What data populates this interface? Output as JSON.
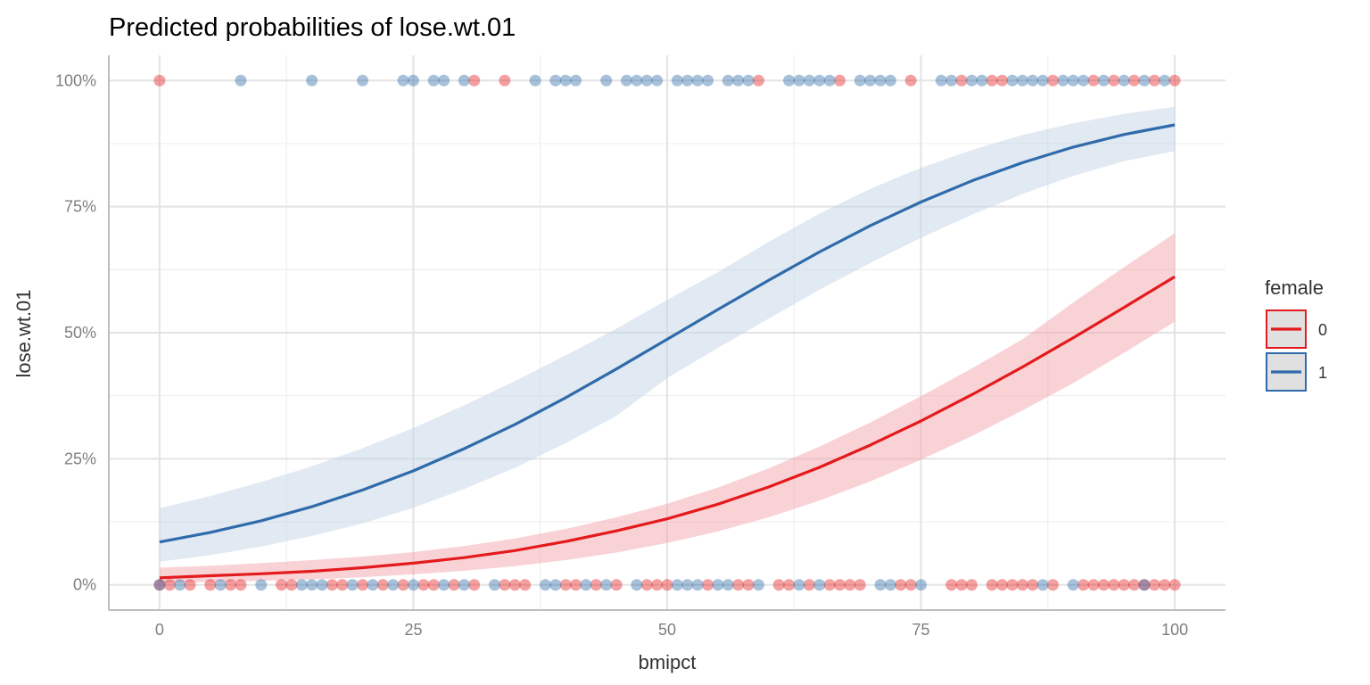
{
  "chart_data": {
    "type": "line",
    "title": "Predicted probabilities of lose.wt.01",
    "xlabel": "bmipct",
    "ylabel": "lose.wt.01",
    "xlim": [
      -5,
      105
    ],
    "ylim": [
      -0.05,
      1.05
    ],
    "x_ticks": [
      0,
      25,
      50,
      75,
      100
    ],
    "x_tick_labels": [
      "0",
      "25",
      "50",
      "75",
      "100"
    ],
    "y_ticks": [
      0,
      0.25,
      0.5,
      0.75,
      1
    ],
    "y_tick_labels": [
      "0%",
      "25%",
      "50%",
      "75%",
      "100%"
    ],
    "grid": true,
    "legend": {
      "title": "female",
      "position": "right"
    },
    "x": [
      0,
      5,
      10,
      15,
      20,
      25,
      30,
      35,
      40,
      45,
      50,
      55,
      60,
      65,
      70,
      75,
      80,
      85,
      90,
      95,
      100
    ],
    "series": [
      {
        "name": "0",
        "color": "#E41A1C",
        "fill": "#F4A5AE",
        "values": [
          0.014,
          0.018,
          0.022,
          0.027,
          0.034,
          0.043,
          0.054,
          0.068,
          0.086,
          0.107,
          0.131,
          0.16,
          0.194,
          0.233,
          0.277,
          0.325,
          0.377,
          0.432,
          0.49,
          0.55,
          0.611
        ],
        "lower": [
          0.004,
          0.006,
          0.008,
          0.011,
          0.015,
          0.021,
          0.028,
          0.037,
          0.049,
          0.064,
          0.083,
          0.106,
          0.134,
          0.167,
          0.205,
          0.248,
          0.295,
          0.346,
          0.4,
          0.46,
          0.522
        ],
        "upper": [
          0.034,
          0.038,
          0.043,
          0.049,
          0.056,
          0.065,
          0.077,
          0.092,
          0.111,
          0.134,
          0.161,
          0.193,
          0.231,
          0.274,
          0.322,
          0.374,
          0.429,
          0.487,
          0.56,
          0.63,
          0.697
        ]
      },
      {
        "name": "1",
        "color": "#2F6BAA",
        "fill": "#C3D3E7",
        "values": [
          0.085,
          0.104,
          0.127,
          0.155,
          0.188,
          0.226,
          0.27,
          0.318,
          0.371,
          0.428,
          0.487,
          0.546,
          0.604,
          0.66,
          0.712,
          0.759,
          0.801,
          0.837,
          0.868,
          0.893,
          0.912
        ],
        "lower": [
          0.046,
          0.059,
          0.076,
          0.097,
          0.122,
          0.153,
          0.19,
          0.232,
          0.281,
          0.335,
          0.41,
          0.47,
          0.528,
          0.585,
          0.638,
          0.688,
          0.734,
          0.775,
          0.811,
          0.84,
          0.86
        ],
        "upper": [
          0.152,
          0.176,
          0.204,
          0.235,
          0.271,
          0.311,
          0.356,
          0.404,
          0.455,
          0.508,
          0.565,
          0.62,
          0.68,
          0.736,
          0.785,
          0.827,
          0.862,
          0.892,
          0.915,
          0.934,
          0.948
        ]
      }
    ],
    "points": {
      "y1": {
        "group0_x": [
          0,
          31,
          34,
          59,
          67,
          74,
          79,
          82,
          83,
          88,
          92,
          94,
          96,
          98,
          100
        ],
        "group1_x": [
          8,
          15,
          20,
          24,
          25,
          27,
          28,
          30,
          37,
          39,
          40,
          41,
          44,
          46,
          47,
          48,
          49,
          51,
          52,
          53,
          54,
          56,
          57,
          58,
          62,
          63,
          64,
          65,
          66,
          69,
          70,
          71,
          72,
          77,
          78,
          80,
          81,
          84,
          85,
          86,
          87,
          89,
          90,
          91,
          93,
          95,
          97,
          99
        ]
      },
      "y0": {
        "group0_x": [
          0,
          1,
          3,
          5,
          7,
          8,
          12,
          13,
          17,
          18,
          20,
          22,
          24,
          26,
          27,
          29,
          31,
          34,
          35,
          36,
          40,
          41,
          43,
          45,
          48,
          49,
          50,
          54,
          57,
          58,
          61,
          62,
          64,
          66,
          67,
          68,
          69,
          73,
          74,
          78,
          79,
          80,
          82,
          83,
          84,
          85,
          86,
          88,
          91,
          92,
          93,
          94,
          95,
          96,
          97,
          98,
          99,
          100
        ],
        "group1_x": [
          0,
          2,
          6,
          10,
          14,
          15,
          16,
          19,
          21,
          23,
          25,
          28,
          30,
          33,
          38,
          39,
          42,
          44,
          47,
          51,
          52,
          53,
          55,
          56,
          59,
          63,
          65,
          71,
          72,
          75,
          87,
          90,
          97
        ]
      }
    }
  }
}
